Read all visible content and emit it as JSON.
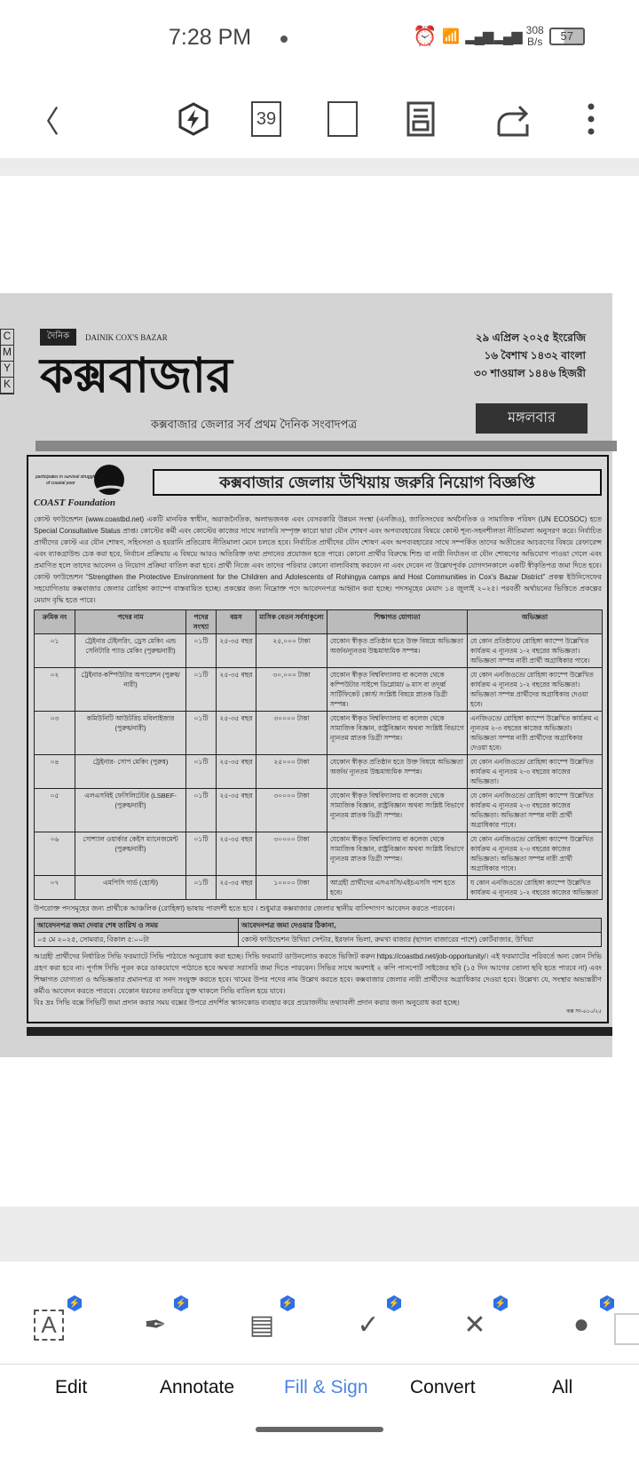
{
  "status": {
    "time": "7:28 PM",
    "net_speed": "308",
    "net_unit": "B/s",
    "battery": "57"
  },
  "toolbar": {
    "page_number": "39",
    "icons": [
      "back-icon",
      "premium-bolt-icon",
      "page-number-icon",
      "fullscreen-icon",
      "reading-mode-icon",
      "share-icon",
      "more-icon"
    ]
  },
  "newspaper": {
    "cmyk": [
      "C",
      "M",
      "Y",
      "K"
    ],
    "dainik": "দৈনিক",
    "dainik_en": "DAINIK COX'S BAZAR",
    "masthead": "কক্সবাজার",
    "tagline": "কক্সবাজার জেলার সর্ব প্রথম দৈনিক সংবাদপত্র",
    "dates": [
      "২৯ এপ্রিল ২০২৫ ইংরেজি",
      "১৬ বৈশাখ ১৪৩২ বাংলা",
      "৩০ শাওয়াল ১৪৪৬ হিজরী"
    ],
    "day": "মঙ্গলবার"
  },
  "ad": {
    "org": "COAST Foundation",
    "logo_text": "participates in survival struggles of coastal poor",
    "title": "কক্সবাজার জেলায় উখিয়ায় জরুরি নিয়োগ বিজ্ঞপ্তি",
    "intro": "কোস্ট ফাউন্ডেশন (www.coastbd.net) একটি মানবিক স্বাধীন, অরাজনৈতিক, অলাভজনক এবং বেসরকারি উন্নয়ন সংস্থা (এনজিও), জাতিসংঘের অর্থনৈতিক ও সামাজিক পরিষদ (UN ECOSOC) হতে Special Consultative Status প্রাপ্ত। কোস্টের কর্মী এবং কোস্টের কাজের সাথে সরাসরি সম্পৃক্ত কারো দ্বারা যৌন শোষণ এবং অপব্যবহারের বিষয়ে কোস্ট শূন্য-সহনশীলতা নীতিমালা অনুসরণ করে। নির্বাচিত প্রার্থীদের কোস্ট এর যৌন শোষণ, সহিংসতা ও হয়রানি প্রতিরোধ নীতিমালা মেনে চলতে হবে। নির্বাচিত প্রার্থীদের যৌন শোষণ এবং অপব্যবহারের সাথে সম্পর্কিত তাদের অতীতের আচরণের বিষয়ে রেফারেন্স এবং ব্যাকগ্রাউন্ড চেক করা হবে, নির্বাচন প্রক্রিয়ায় এ বিষয়ে আরও অতিরিক্ত তথ্য প্রদানের প্রয়োজন হতে পারে। কোনো প্রার্থীর বিরুদ্ধে শিশু বা নারী নির্যাতন বা যৌন শোষণের অভিযোগ পাওয়া গেলে এবং প্রমাণিত হলে তাদের আবেদন ও নিয়োগ প্রক্রিয়া বাতিল করা হবে। প্রার্থী নিজে এবং তাদের পরিবার কোনো বাল্যবিবাহ করবেন না এবং দেবেন না উল্লেখপূর্বক যোগদানকালে একটি স্বীকৃতিপত্র জমা দিতে হবে। কোস্ট ফাউন্ডেশন “Strengthen the Protective Environment for the Children and Adolescents of Rohingya camps and Host Communities in Cox’s Bazar District” প্রকল্প ইউনিসেফের সহযোগিতায় কক্সবাজার জেলার রোহিঙ্গা ক্যাম্পে বাস্তবায়িত হচ্ছে। প্রকল্পের জন্য নিম্নোক্ত পদে আবেদনপত্র আহ্বান করা হচ্ছে। পদসমূহের মেয়াদ ১৪ জুলাই ২০২৫। পরবর্তী অর্থায়নের ভিত্তিতে প্রকল্পের মেয়াদ বৃদ্ধি হতে পারে।",
    "table": {
      "headers": [
        "ক্রমিক নং",
        "পদের নাম",
        "পদের সংখ্যা",
        "বয়স",
        "মাসিক বেতন সর্বসাকুল্যে",
        "শিক্ষাগত যোগ্যতা",
        "অভিজ্ঞতা"
      ],
      "rows": [
        [
          "০১",
          "ট্রেইনার টেইলরিং, ড্রেস মেকিং এন্ড সেনিটারি প্যাড মেকিং (পুরুষ/নারী)",
          "০১টি",
          "২৫-৩৫ বছর",
          "২৫,০০০ টাকা",
          "যেকোন স্বীকৃত প্রতিষ্ঠান হতে উক্ত বিষয়ে অভিজ্ঞতা অর্জন/ন্যূনতম উচ্চমাধ্যমিক সম্পন্ন।",
          "যে কোন প্রতিষ্ঠানে/ রোহিঙ্গা ক্যাম্পে উল্লেখিত কার্যক্রম এ ন্যূনতম ১-২ বছরের অভিজ্ঞতা। অভিজ্ঞতা সম্পন্ন নারী প্রার্থী অগ্রাধিকার পাবে।"
        ],
        [
          "০২",
          "ট্রেইনার-কম্পিউটার অপারেশন (পুরুষ/নারী)",
          "০১টি",
          "২৫-৩৫ বছর",
          "৩০,০০০ টাকা",
          "যেকোন স্বীকৃত বিশ্ববিদ্যালয় বা কলেজ থেকে কম্পিউটার সাইন্সে ডিপ্লোমা/ ৬ মাস বা তদূর্ধ্ব সার্টিফিকেট কোর্স/ সংশ্লিষ্ট বিষয়ে স্নাতক ডিগ্রী সম্পন্ন।",
          "যে কোন এনজিওতে/ রোহিঙ্গা ক্যাম্পে উল্লেখিত কার্যক্রম এ ন্যূনতম ১-২ বছরের অভিজ্ঞতা। অভিজ্ঞতা সম্পন্ন প্রার্থীদের অগ্রাধিকার দেওয়া হবে।"
        ],
        [
          "০৩",
          "কমিউনিটি আউটরিচ মবিলাইজার (পুরুষ/নারী)",
          "০১টি",
          "২৫-৩৫ বছর",
          "৩০০০০ টাকা",
          "যেকোন স্বীকৃত বিশ্ববিদ্যালয় বা কলেজ থেকে সামাজিক বিজ্ঞান, রাষ্ট্রবিজ্ঞান অথবা সংশ্লিষ্ট বিভাগে ন্যূনতম স্নাতক ডিগ্রী সম্পন্ন।",
          "এনজিওতে/ রোহিঙ্গা ক্যাম্পে উল্লেখিত কার্যক্রম এ ন্যূনতম ২-৩ বছরের কাজের অভিজ্ঞতা। অভিজ্ঞতা সম্পন্ন নারী প্রার্থীদের অগ্রাধিকার দেওয়া হবে।"
        ],
        [
          "০৪",
          "ট্রেইনার- সোপ মেকিং (পুরুষ)",
          "০১টি",
          "২৫-৩৫ বছর",
          "২৫০০০ টাকা",
          "যেকোন স্বীকৃত প্রতিষ্ঠান হতে উক্ত বিষয়ে অভিজ্ঞতা অর্জন/ ন্যূনতম উচ্চমাধ্যমিক সম্পন্ন।",
          "যে কোন এনজিওতে/ রোহিঙ্গা ক্যাম্পে উল্লেখিত কার্যক্রম এ ন্যূনতম ২-৩ বছরের কাজের অভিজ্ঞতা।"
        ],
        [
          "০৫",
          "এলএসবিই ফেসিলিটেটর (LSBEF-(পুরুষ/নারী)",
          "০১টি",
          "২৫-৩৫ বছর",
          "৩০০০০ টাকা",
          "যেকোন স্বীকৃত বিশ্ববিদ্যালয় বা কলেজ থেকে সামাজিক বিজ্ঞান, রাষ্ট্রবিজ্ঞান অথবা সংশ্লিষ্ট বিভাগে ন্যূনতম স্নাতক ডিগ্রী সম্পন্ন।",
          "যে কোন এনজিওতে/ রোহিঙ্গা ক্যাম্পে উল্লেখিত কার্যক্রম এ ন্যূনতম ২-৩ বছরের কাজের অভিজ্ঞতা। অভিজ্ঞতা সম্পন্ন নারী প্রার্থী অগ্রাধিকার পাবে।"
        ],
        [
          "০৬",
          "সোশ্যাল ওয়ার্কার কেইস ম্যানেজমেন্ট (পুরুষ/নারী)",
          "০১টি",
          "২৫-৩৫ বছর",
          "৩০০০০ টাকা",
          "যেকোন স্বীকৃত বিশ্ববিদ্যালয় বা কলেজ থেকে সামাজিক বিজ্ঞান, রাষ্ট্রবিজ্ঞান অথবা সংশ্লিষ্ট বিভাগে ন্যূনতম স্নাতক ডিগ্রী সম্পন্ন।",
          "যে কোন এনজিওতে/ রোহিঙ্গা ক্যাম্পে উল্লেখিত কার্যক্রম এ ন্যূনতম ২-৩ বছরের কাজের অভিজ্ঞতা। অভিজ্ঞতা সম্পন্ন নারী প্রার্থী অগ্রাধিকার পাবে।"
        ],
        [
          "০৭",
          "এমপিসি গার্ড (হোস্ট)",
          "০১টি",
          "২৫-৩৫ বছর",
          "১০০০০ টাকা",
          "আগ্রহী প্রার্থীদের এসএসসি/এইচএসসি পাশ হতে হবে।",
          "য কোন এনজিওতে/ রোহিঙ্গা ক্যাম্পে উল্লেখিত কার্যক্রম এ ন্যূনতম ১-২ বছরের কাজের অভিজ্ঞতা"
        ]
      ]
    },
    "language_note": "উপরোক্ত পদসমূহের জন্য প্রার্থীকে আঞ্চলিক (রোহিঙ্গা) ভাষায় পারদর্শী হতে হবে । শুধুমাত্র কক্সবাজার জেলার স্থানীয় বাসিন্দাগণ আবেদন করতে পারবেন।",
    "deadline_label": "আবেদনপত্র জমা দেবার শেষ তারিখ ও সময়",
    "deadline_value": "০৫ মে ২০২৫, সোমবার, বিকাল ৫:০০টা",
    "address_label": "আবেদনপত্র জমা দেওয়ার ঠিকানা,",
    "address_value": "কোস্ট ফাউন্ডেশন উখিয়া সেন্টার, ইরফান ভিলা, রুমখা বাজার (ছাগল বাজারের পাশে) কোর্টবাজার, উখিয়া",
    "footer": "আগ্রহী প্রার্থীদের নির্ধারিত সিভি ফরম্যাটে সিভি পাঠাতে অনুরোধ করা হচ্ছে। সিভি ফরম্যাট ডাউনলোড করতে ভিজিট করুন https://coastbd.net/job-opportunity/। এই ফরম্যাটের পরিবর্তে অন্য কোন সিভি গ্রহণ করা হবে না। পূর্ণাঙ্গ সিভি পূরন করে ডাকযোগে পাঠাতে হবে অথবা সরাসরি জমা দিতে পারবেন। সিভির সাথে অবশ্যই ২ কপি পাসপোর্ট সাইজের ছবি (১৫ দিন আগের তোলা ছবি হতে পারবে না) এবং শিক্ষাগত যোগ্যতা ও অভিজ্ঞতার প্রমানপত্র বা সনদ সংযুক্ত করতে হবে। খামের উপর পদের নাম উল্লেখ করতে হবে। কক্সবাজার জেলার নারী প্রার্থীদের অগ্রাধিকার দেওয়া হবে। উল্লেখ্য যে, সংস্থার অভ্যন্তরীণ কর্মীও আবেদন করতে পারবে। যেকোন ধরনের তদবিরে যুক্ত থাকলে সিভি বাতিল হয়ে যাবে।",
    "footnote": "বিঃ দ্রঃ সিভি বক্সে সিভিটি জমা প্রদান করার সময় বক্সের উপরে প্রদর্শিত স্ক্যানকোড ব্যবহার করে প্রয়োজনীয় তথ্যাবলী প্রদান করার জন্য অনুরোধ করা হচ্ছে।",
    "ref": "কক্স সং-৬১০/২৫"
  },
  "bottom": {
    "tools": [
      {
        "icon": "edit-text-icon",
        "glyph": "A"
      },
      {
        "icon": "signature-pen-icon",
        "glyph": "✒"
      },
      {
        "icon": "date-calendar-icon",
        "glyph": "▤"
      },
      {
        "icon": "checkmark-icon",
        "glyph": "✓"
      },
      {
        "icon": "cross-icon",
        "glyph": "✕"
      },
      {
        "icon": "dot-icon",
        "glyph": "●"
      }
    ],
    "tabs": [
      "Edit",
      "Annotate",
      "Fill & Sign",
      "Convert",
      "All"
    ],
    "active_tab": "Fill & Sign",
    "accent": "#4a86e0",
    "badge_color": "#2e6fe6"
  }
}
